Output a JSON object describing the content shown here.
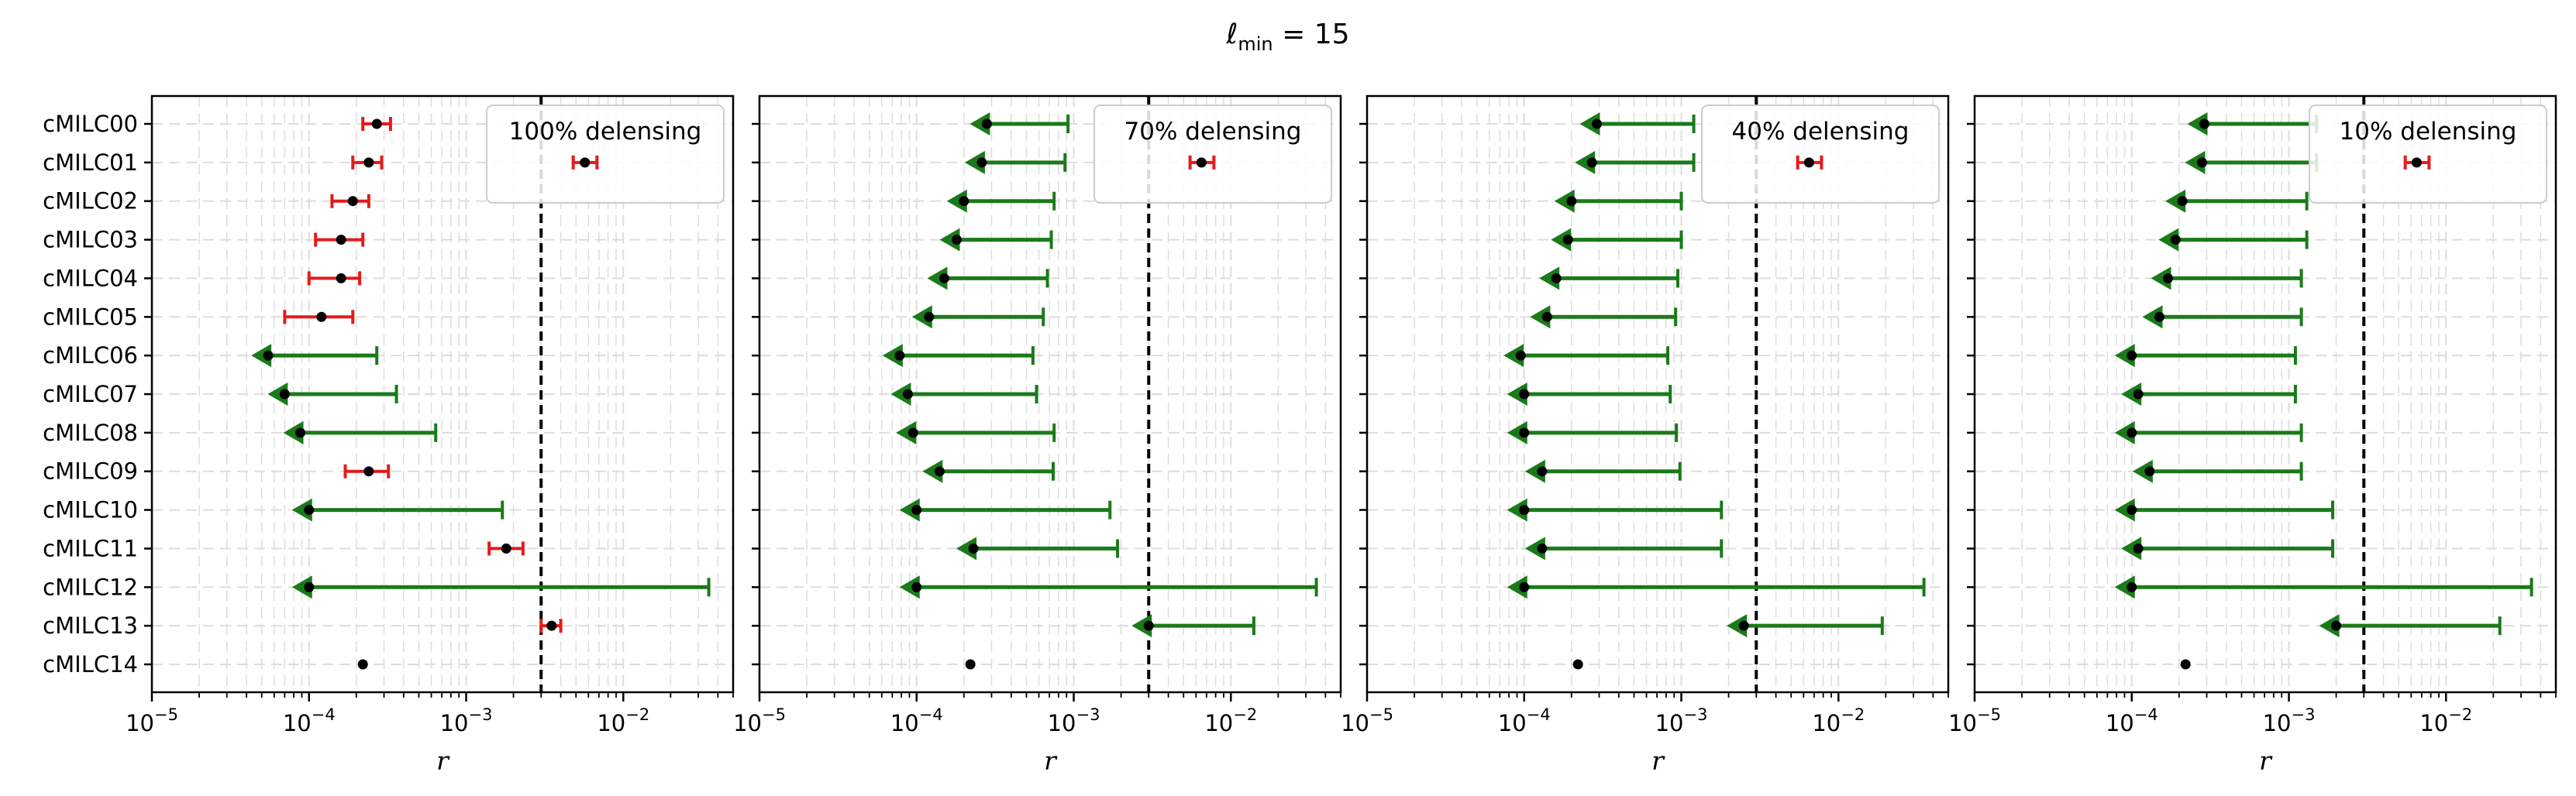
{
  "figure_title": {
    "base": "ℓ",
    "sub": "min",
    "rest": " = 15"
  },
  "colors": {
    "detection": "#e41a1c",
    "upper_limit": "#1a7a1a",
    "point": "#000000",
    "threshold_line": "#000000",
    "grid": "#dddddd"
  },
  "chart_data": {
    "type": "scatter",
    "x_scale": "log",
    "xlabel": "r",
    "xlim": [
      1e-05,
      0.05
    ],
    "x_ticks": [
      {
        "value": 1e-05,
        "base": "10",
        "exp": "−5"
      },
      {
        "value": 0.0001,
        "base": "10",
        "exp": "−4"
      },
      {
        "value": 0.001,
        "base": "10",
        "exp": "−3"
      },
      {
        "value": 0.01,
        "base": "10",
        "exp": "−2"
      }
    ],
    "grid": true,
    "threshold_r": 0.003,
    "categories": [
      "cMILC00",
      "cMILC01",
      "cMILC02",
      "cMILC03",
      "cMILC04",
      "cMILC05",
      "cMILC06",
      "cMILC07",
      "cMILC08",
      "cMILC09",
      "cMILC10",
      "cMILC11",
      "cMILC12",
      "cMILC13",
      "cMILC14"
    ],
    "panels": [
      {
        "label": "100% delensing",
        "entries": [
          {
            "kind": "detection",
            "point": 0.00027,
            "low": 0.00022,
            "high": 0.00033
          },
          {
            "kind": "detection",
            "point": 0.00024,
            "low": 0.00019,
            "high": 0.00029
          },
          {
            "kind": "detection",
            "point": 0.00019,
            "low": 0.00014,
            "high": 0.00024
          },
          {
            "kind": "detection",
            "point": 0.00016,
            "low": 0.00011,
            "high": 0.00022
          },
          {
            "kind": "detection",
            "point": 0.00016,
            "low": 0.0001,
            "high": 0.00021
          },
          {
            "kind": "detection",
            "point": 0.00012,
            "low": 7e-05,
            "high": 0.00019
          },
          {
            "kind": "upper_limit",
            "point": 5.5e-05,
            "high": 0.00027
          },
          {
            "kind": "upper_limit",
            "point": 7e-05,
            "high": 0.00036
          },
          {
            "kind": "upper_limit",
            "point": 8.8e-05,
            "high": 0.00064
          },
          {
            "kind": "detection",
            "point": 0.00024,
            "low": 0.00017,
            "high": 0.00032
          },
          {
            "kind": "upper_limit",
            "point": 0.0001,
            "high": 0.0017
          },
          {
            "kind": "detection",
            "point": 0.0018,
            "low": 0.0014,
            "high": 0.0023
          },
          {
            "kind": "upper_limit",
            "point": 0.0001,
            "high": 0.035
          },
          {
            "kind": "detection",
            "point": 0.0035,
            "low": 0.003,
            "high": 0.004
          },
          {
            "kind": "point",
            "point": 0.00022
          }
        ],
        "extra": {
          "row": 1,
          "kind": "detection",
          "point": 0.0057,
          "low": 0.0048,
          "high": 0.0068
        }
      },
      {
        "label": "70% delensing",
        "entries": [
          {
            "kind": "upper_limit",
            "point": 0.00028,
            "high": 0.00092
          },
          {
            "kind": "upper_limit",
            "point": 0.00026,
            "high": 0.00088
          },
          {
            "kind": "upper_limit",
            "point": 0.0002,
            "high": 0.00075
          },
          {
            "kind": "upper_limit",
            "point": 0.00018,
            "high": 0.00072
          },
          {
            "kind": "upper_limit",
            "point": 0.00015,
            "high": 0.00068
          },
          {
            "kind": "upper_limit",
            "point": 0.00012,
            "high": 0.00064
          },
          {
            "kind": "upper_limit",
            "point": 7.8e-05,
            "high": 0.00055
          },
          {
            "kind": "upper_limit",
            "point": 8.8e-05,
            "high": 0.00058
          },
          {
            "kind": "upper_limit",
            "point": 9.5e-05,
            "high": 0.00075
          },
          {
            "kind": "upper_limit",
            "point": 0.00014,
            "high": 0.00074
          },
          {
            "kind": "upper_limit",
            "point": 0.0001,
            "high": 0.0017
          },
          {
            "kind": "upper_limit",
            "point": 0.00023,
            "high": 0.0019
          },
          {
            "kind": "upper_limit",
            "point": 0.0001,
            "high": 0.035
          },
          {
            "kind": "upper_limit",
            "point": 0.003,
            "high": 0.014
          },
          {
            "kind": "point",
            "point": 0.00022
          }
        ],
        "extra": {
          "row": 1,
          "kind": "detection",
          "point": 0.0065,
          "low": 0.0055,
          "high": 0.0078
        }
      },
      {
        "label": "40% delensing",
        "entries": [
          {
            "kind": "upper_limit",
            "point": 0.00029,
            "high": 0.0012
          },
          {
            "kind": "upper_limit",
            "point": 0.00027,
            "high": 0.0012
          },
          {
            "kind": "upper_limit",
            "point": 0.0002,
            "high": 0.001
          },
          {
            "kind": "upper_limit",
            "point": 0.00019,
            "high": 0.001
          },
          {
            "kind": "upper_limit",
            "point": 0.00016,
            "high": 0.00095
          },
          {
            "kind": "upper_limit",
            "point": 0.00014,
            "high": 0.00092
          },
          {
            "kind": "upper_limit",
            "point": 9.5e-05,
            "high": 0.00082
          },
          {
            "kind": "upper_limit",
            "point": 0.0001,
            "high": 0.00085
          },
          {
            "kind": "upper_limit",
            "point": 0.0001,
            "high": 0.00093
          },
          {
            "kind": "upper_limit",
            "point": 0.00013,
            "high": 0.00098
          },
          {
            "kind": "upper_limit",
            "point": 0.0001,
            "high": 0.0018
          },
          {
            "kind": "upper_limit",
            "point": 0.00013,
            "high": 0.0018
          },
          {
            "kind": "upper_limit",
            "point": 0.0001,
            "high": 0.035
          },
          {
            "kind": "upper_limit",
            "point": 0.0025,
            "high": 0.019
          },
          {
            "kind": "point",
            "point": 0.00022
          }
        ],
        "extra": {
          "row": 1,
          "kind": "detection",
          "point": 0.0065,
          "low": 0.0055,
          "high": 0.0078
        }
      },
      {
        "label": "10% delensing",
        "entries": [
          {
            "kind": "upper_limit",
            "point": 0.00029,
            "high": 0.0015
          },
          {
            "kind": "upper_limit",
            "point": 0.00028,
            "high": 0.0015
          },
          {
            "kind": "upper_limit",
            "point": 0.00021,
            "high": 0.0013
          },
          {
            "kind": "upper_limit",
            "point": 0.00019,
            "high": 0.0013
          },
          {
            "kind": "upper_limit",
            "point": 0.00017,
            "high": 0.0012
          },
          {
            "kind": "upper_limit",
            "point": 0.00015,
            "high": 0.0012
          },
          {
            "kind": "upper_limit",
            "point": 0.0001,
            "high": 0.0011
          },
          {
            "kind": "upper_limit",
            "point": 0.00011,
            "high": 0.0011
          },
          {
            "kind": "upper_limit",
            "point": 0.0001,
            "high": 0.0012
          },
          {
            "kind": "upper_limit",
            "point": 0.00013,
            "high": 0.0012
          },
          {
            "kind": "upper_limit",
            "point": 0.0001,
            "high": 0.0019
          },
          {
            "kind": "upper_limit",
            "point": 0.00011,
            "high": 0.0019
          },
          {
            "kind": "upper_limit",
            "point": 0.0001,
            "high": 0.035
          },
          {
            "kind": "upper_limit",
            "point": 0.002,
            "high": 0.022
          },
          {
            "kind": "point",
            "point": 0.00022
          }
        ],
        "extra": {
          "row": 1,
          "kind": "detection",
          "point": 0.0065,
          "low": 0.0055,
          "high": 0.0078
        }
      }
    ]
  }
}
